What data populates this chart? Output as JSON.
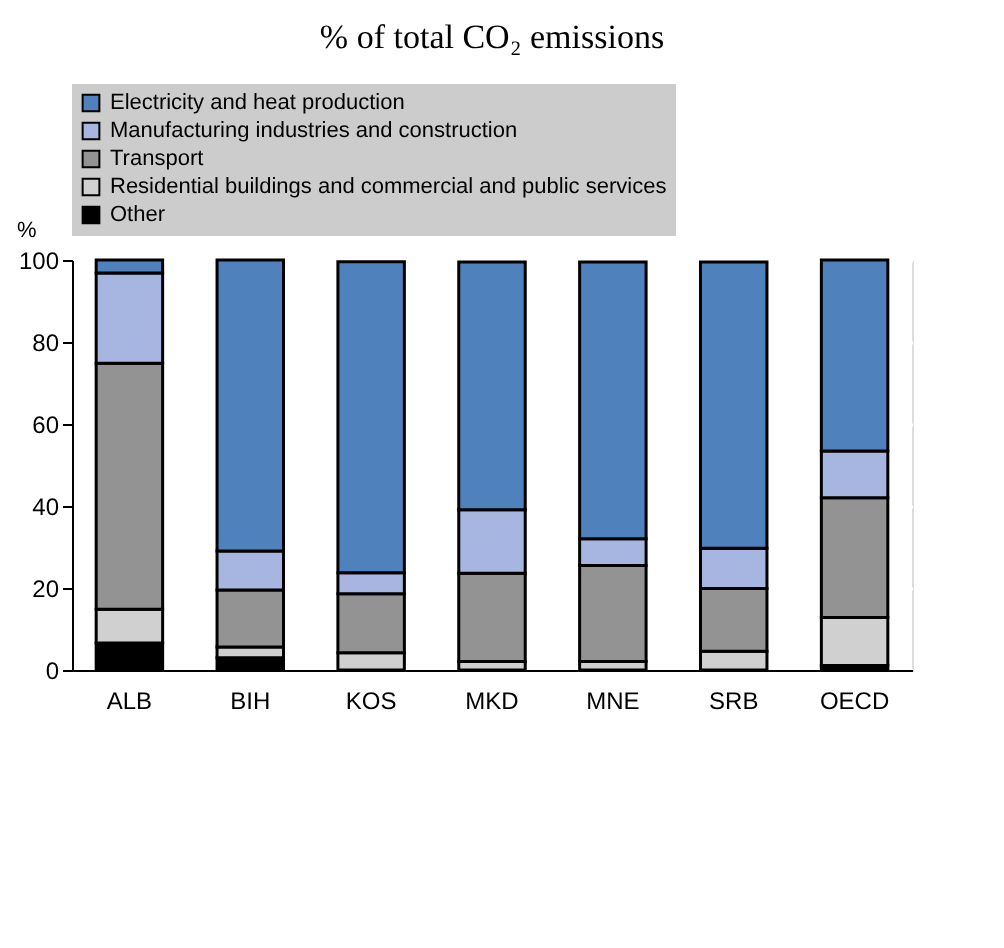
{
  "chart_data": {
    "type": "bar",
    "title": "% of total CO₂ emissions",
    "ylabel": "%",
    "stacked": true,
    "categories": [
      "ALB",
      "BIH",
      "KOS",
      "MKD",
      "MNE",
      "SRB",
      "OECD"
    ],
    "series": [
      {
        "name": "Other",
        "color": "#000000",
        "values": [
          6.6,
          3.0,
          null,
          null,
          null,
          null,
          1.1
        ]
      },
      {
        "name": "Residential buildings and commercial and public services",
        "color": "#d0d0d0",
        "values": [
          8.2,
          2.6,
          4.2,
          2.1,
          2.1,
          4.6,
          11.7
        ]
      },
      {
        "name": "Transport",
        "color": "#939393",
        "values": [
          60.0,
          13.9,
          14.4,
          21.5,
          23.4,
          15.3,
          29.2
        ]
      },
      {
        "name": "Manufacturing industries and construction",
        "color": "#a7b6e0",
        "values": [
          22.0,
          9.5,
          5.1,
          15.5,
          6.5,
          9.8,
          11.4
        ]
      },
      {
        "name": "Electricity and heat production",
        "color": "#4f81bd",
        "values": [
          3.2,
          71.0,
          75.9,
          60.4,
          67.5,
          69.8,
          46.6
        ]
      }
    ],
    "ylim": [
      0,
      100
    ],
    "yticks": [
      0,
      20,
      40,
      60,
      80,
      100
    ],
    "grid": "y",
    "legend": "top"
  }
}
